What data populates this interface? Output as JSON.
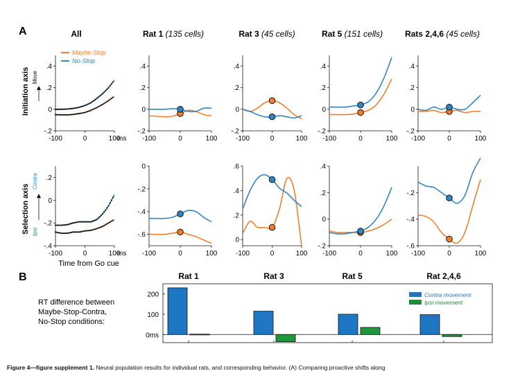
{
  "panel_a_label": "A",
  "panel_b_label": "B",
  "axis_labels": {
    "initiation": "Initiation axis",
    "initiation_dir": "Move",
    "selection": "Selection axis",
    "contra": "Contra",
    "ipsi": "Ipsi",
    "time": "Time from Go cue",
    "ms": "ms"
  },
  "columns": [
    {
      "id": "all",
      "title": "All",
      "count": ""
    },
    {
      "id": "rat1",
      "title": "Rat 1",
      "count": "(135 cells)"
    },
    {
      "id": "rat3",
      "title": "Rat 3",
      "count": "(45 cells)"
    },
    {
      "id": "rat5",
      "title": "Rat 5",
      "count": "(151 cells)"
    },
    {
      "id": "rats246",
      "title": "Rats 2,4,6",
      "count": "(45 cells)"
    }
  ],
  "legend": {
    "maybe_stop": "Maybe-Stop",
    "no_stop": "No-Stop"
  },
  "colors": {
    "maybe_stop": "#f07f2c",
    "no_stop": "#2f86c3",
    "contra_bar": "#2f6fb7",
    "ipsi_bar": "#1e8a3a",
    "bar_blue": "#1f77c4",
    "bar_green": "#21963a"
  },
  "chart_data": [
    {
      "type": "line",
      "panel": "All",
      "row": "Initiation axis",
      "x": [
        -100,
        -80,
        -60,
        -40,
        -20,
        0,
        20,
        40,
        60,
        80,
        100
      ],
      "series": [
        {
          "name": "Maybe-Stop",
          "values": [
            -0.05,
            -0.052,
            -0.052,
            -0.048,
            -0.04,
            -0.03,
            -0.01,
            0.015,
            0.045,
            0.08,
            0.12
          ]
        },
        {
          "name": "No-Stop",
          "values": [
            0.0,
            0.0,
            0.002,
            0.008,
            0.018,
            0.035,
            0.06,
            0.1,
            0.145,
            0.2,
            0.27
          ]
        }
      ],
      "xlim": [
        -100,
        100
      ],
      "ylim": [
        -0.2,
        0.5
      ],
      "yticks": [
        -0.2,
        0,
        0.2,
        0.4
      ],
      "xticks": [
        -100,
        0,
        100
      ],
      "dotted": true
    },
    {
      "type": "line",
      "panel": "Rat 1",
      "row": "Initiation axis",
      "x": [
        -100,
        -50,
        -25,
        0,
        25,
        50,
        75,
        100
      ],
      "series": [
        {
          "name": "Maybe-Stop",
          "values": [
            -0.06,
            -0.07,
            -0.065,
            -0.04,
            -0.01,
            -0.02,
            -0.05,
            -0.06
          ]
        },
        {
          "name": "No-Stop",
          "values": [
            0.0,
            0.0,
            0.005,
            0.0,
            -0.02,
            -0.02,
            0.01,
            0.01
          ]
        }
      ],
      "markers": {
        "Maybe-Stop": -0.04,
        "No-Stop": 0.0
      },
      "xlim": [
        -100,
        100
      ],
      "ylim": [
        -0.2,
        0.5
      ],
      "yticks": [
        -0.2,
        0,
        0.2,
        0.4
      ],
      "xticks": [
        -100,
        0,
        100
      ]
    },
    {
      "type": "line",
      "panel": "Rat 3",
      "row": "Initiation axis",
      "x": [
        -100,
        -75,
        -50,
        -25,
        0,
        25,
        50,
        75,
        100
      ],
      "series": [
        {
          "name": "Maybe-Stop",
          "values": [
            0.0,
            -0.02,
            0.01,
            0.06,
            0.08,
            0.06,
            0.01,
            -0.05,
            -0.09
          ]
        },
        {
          "name": "No-Stop",
          "values": [
            0.0,
            -0.02,
            -0.05,
            -0.07,
            -0.07,
            -0.06,
            -0.07,
            -0.08,
            -0.06
          ]
        }
      ],
      "markers": {
        "Maybe-Stop": 0.08,
        "No-Stop": -0.07
      },
      "xlim": [
        -100,
        100
      ],
      "ylim": [
        -0.2,
        0.5
      ],
      "yticks": [
        -0.2,
        0,
        0.2,
        0.4
      ],
      "xticks": [
        -100,
        0,
        100
      ]
    },
    {
      "type": "line",
      "panel": "Rat 5",
      "row": "Initiation axis",
      "x": [
        -100,
        -75,
        -50,
        -25,
        0,
        25,
        50,
        75,
        100
      ],
      "series": [
        {
          "name": "Maybe-Stop",
          "values": [
            -0.05,
            -0.05,
            -0.05,
            -0.045,
            -0.03,
            -0.01,
            0.04,
            0.14,
            0.28
          ]
        },
        {
          "name": "No-Stop",
          "values": [
            0.02,
            0.02,
            0.02,
            0.03,
            0.04,
            0.07,
            0.15,
            0.29,
            0.48
          ]
        }
      ],
      "markers": {
        "Maybe-Stop": -0.03,
        "No-Stop": 0.04
      },
      "xlim": [
        -100,
        100
      ],
      "ylim": [
        -0.2,
        0.5
      ],
      "yticks": [
        -0.2,
        0,
        0.2,
        0.4
      ],
      "xticks": [
        -100,
        0,
        100
      ]
    },
    {
      "type": "line",
      "panel": "Rats 2,4,6",
      "row": "Initiation axis",
      "x": [
        -100,
        -75,
        -50,
        -25,
        0,
        25,
        50,
        75,
        100
      ],
      "series": [
        {
          "name": "Maybe-Stop",
          "values": [
            -0.02,
            -0.02,
            -0.01,
            -0.03,
            -0.02,
            -0.01,
            -0.03,
            -0.02,
            -0.02
          ]
        },
        {
          "name": "No-Stop",
          "values": [
            0.0,
            -0.01,
            0.02,
            0.0,
            0.02,
            0.0,
            0.0,
            0.06,
            0.13
          ]
        }
      ],
      "markers": {
        "Maybe-Stop": -0.02,
        "No-Stop": 0.02
      },
      "xlim": [
        -100,
        100
      ],
      "ylim": [
        -0.2,
        0.5
      ],
      "yticks": [
        -0.2,
        0,
        0.2,
        0.4
      ],
      "xticks": [
        -100,
        0,
        100
      ]
    },
    {
      "type": "line",
      "panel": "All",
      "row": "Selection axis",
      "x": [
        -100,
        -80,
        -60,
        -40,
        -20,
        0,
        20,
        40,
        60,
        80,
        100
      ],
      "series": [
        {
          "name": "Maybe-Stop",
          "values": [
            -0.28,
            -0.29,
            -0.29,
            -0.28,
            -0.28,
            -0.27,
            -0.265,
            -0.25,
            -0.23,
            -0.2,
            -0.17
          ]
        },
        {
          "name": "No-Stop",
          "values": [
            -0.22,
            -0.22,
            -0.215,
            -0.2,
            -0.19,
            -0.19,
            -0.19,
            -0.17,
            -0.12,
            -0.05,
            0.05
          ]
        }
      ],
      "xlim": [
        -100,
        100
      ],
      "ylim": [
        -0.4,
        0.3
      ],
      "yticks": [
        -0.4,
        -0.2,
        0,
        0.2
      ],
      "xticks": [
        -100,
        0,
        100
      ],
      "dotted": true
    },
    {
      "type": "line",
      "panel": "Rat 1",
      "row": "Selection axis",
      "x": [
        -100,
        -75,
        -50,
        -25,
        0,
        25,
        50,
        75,
        100
      ],
      "series": [
        {
          "name": "Maybe-Stop",
          "values": [
            -0.6,
            -0.6,
            -0.6,
            -0.59,
            -0.58,
            -0.6,
            -0.62,
            -0.65,
            -0.68
          ]
        },
        {
          "name": "No-Stop",
          "values": [
            -0.46,
            -0.46,
            -0.46,
            -0.45,
            -0.42,
            -0.39,
            -0.4,
            -0.45,
            -0.49
          ]
        }
      ],
      "markers": {
        "Maybe-Stop": -0.58,
        "No-Stop": -0.42
      },
      "xlim": [
        -100,
        100
      ],
      "ylim": [
        -0.7,
        0.0
      ],
      "yticks": [
        -0.6,
        -0.4,
        -0.2,
        0
      ],
      "xticks": [
        -100,
        0,
        100
      ]
    },
    {
      "type": "line",
      "panel": "Rat 3",
      "row": "Selection axis",
      "x": [
        -100,
        -75,
        -50,
        -25,
        0,
        25,
        50,
        75,
        100
      ],
      "series": [
        {
          "name": "Maybe-Stop",
          "values": [
            0.05,
            0.15,
            0.1,
            0.1,
            0.1,
            0.25,
            0.5,
            0.4,
            -0.05
          ]
        },
        {
          "name": "No-Stop",
          "values": [
            0.25,
            0.4,
            0.5,
            0.53,
            0.49,
            0.42,
            0.38,
            0.32,
            0.27
          ]
        }
      ],
      "markers": {
        "Maybe-Stop": 0.1,
        "No-Stop": 0.49
      },
      "xlim": [
        -100,
        100
      ],
      "ylim": [
        -0.05,
        0.6
      ],
      "yticks": [
        0,
        0.2,
        0.4,
        0.6
      ],
      "xticks": [
        -100,
        0,
        100
      ]
    },
    {
      "type": "line",
      "panel": "Rat 5",
      "row": "Selection axis",
      "x": [
        -100,
        -75,
        -50,
        -25,
        0,
        25,
        50,
        75,
        100
      ],
      "series": [
        {
          "name": "Maybe-Stop",
          "values": [
            -0.09,
            -0.1,
            -0.1,
            -0.1,
            -0.1,
            -0.09,
            -0.07,
            -0.04,
            0.0
          ]
        },
        {
          "name": "No-Stop",
          "values": [
            -0.1,
            -0.11,
            -0.11,
            -0.1,
            -0.09,
            -0.06,
            0.0,
            0.1,
            0.24
          ]
        }
      ],
      "markers": {
        "Maybe-Stop": -0.1,
        "No-Stop": -0.09
      },
      "xlim": [
        -100,
        100
      ],
      "ylim": [
        -0.2,
        0.4
      ],
      "yticks": [
        -0.2,
        0,
        0.2,
        0.4
      ],
      "xticks": [
        -100,
        0,
        100
      ]
    },
    {
      "type": "line",
      "panel": "Rats 2,4,6",
      "row": "Selection axis",
      "x": [
        -100,
        -75,
        -50,
        -25,
        0,
        25,
        50,
        75,
        100
      ],
      "series": [
        {
          "name": "Maybe-Stop",
          "values": [
            -0.37,
            -0.38,
            -0.42,
            -0.5,
            -0.55,
            -0.58,
            -0.5,
            -0.3,
            -0.1
          ]
        },
        {
          "name": "No-Stop",
          "values": [
            -0.12,
            -0.15,
            -0.16,
            -0.2,
            -0.24,
            -0.28,
            -0.22,
            -0.05,
            0.06
          ]
        }
      ],
      "markers": {
        "Maybe-Stop": -0.55,
        "No-Stop": -0.24
      },
      "xlim": [
        -100,
        100
      ],
      "ylim": [
        -0.6,
        0.0
      ],
      "yticks": [
        -0.6,
        -0.4,
        -0.2
      ],
      "xticks": [
        -100,
        0,
        100
      ]
    },
    {
      "type": "bar",
      "panel": "B",
      "ylabel_lines": [
        "RT difference between",
        "Maybe-Stop-Contra,",
        "No-Stop conditions:"
      ],
      "categories": [
        "Rat 1",
        "Rat 3",
        "Rat 5",
        "Rat 2,4,6"
      ],
      "series": [
        {
          "name": "Contra movement",
          "values": [
            230,
            115,
            100,
            98
          ]
        },
        {
          "name": "Ipsi movement",
          "values": [
            2,
            -35,
            35,
            -10
          ]
        }
      ],
      "ylim": [
        -40,
        250
      ],
      "yticks": [
        0,
        100,
        200
      ],
      "ytick_labels": [
        "0ms",
        "100",
        "200"
      ]
    }
  ],
  "caption": {
    "bold": "Figure 4—figure supplement 1.",
    "text": " Neural population results for individual rats, and corresponding behavior.  (A) Comparing proactive shifts along"
  }
}
